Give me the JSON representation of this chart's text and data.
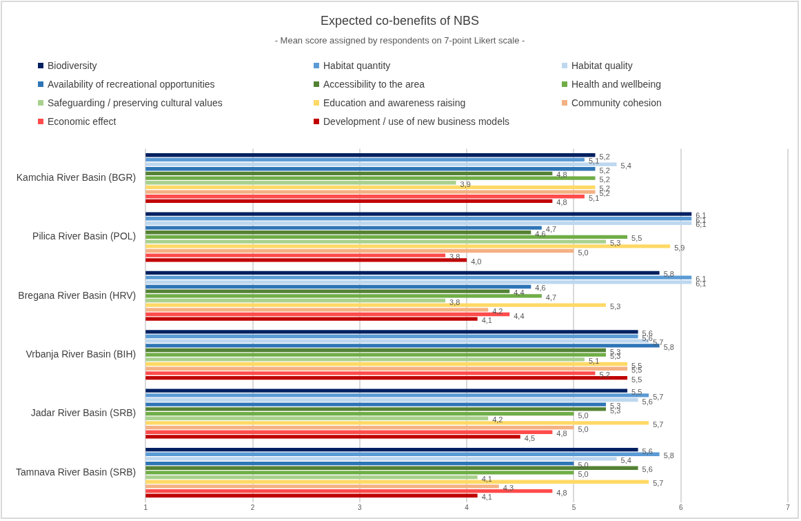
{
  "chart_data": {
    "type": "bar",
    "orientation": "horizontal",
    "title": "Expected co-benefits of NBS",
    "subtitle": "- Mean score assigned by respondents on 7-point Likert scale -",
    "categories": [
      "Kamchia River Basin (BGR)",
      "Pilica River Basin (POL)",
      "Bregana River Basin (HRV)",
      "Vrbanja River Basin (BIH)",
      "Jadar River Basin (SRB)",
      "Tamnava River Basin (SRB)"
    ],
    "xlim": [
      1,
      7
    ],
    "xticks": [
      1,
      2,
      3,
      4,
      5,
      6,
      7
    ],
    "grid": "x",
    "legend": "top",
    "series": [
      {
        "name": "Biodiversity",
        "color": "#002060",
        "values": [
          5.2,
          6.1,
          5.8,
          5.6,
          5.5,
          5.6
        ],
        "value_labels": [
          "5,2",
          "6,1",
          "5,8",
          "5,6",
          "5,5",
          "5,6"
        ]
      },
      {
        "name": "Habitat quantity",
        "color": "#5b9bd5",
        "values": [
          5.1,
          6.1,
          6.1,
          5.6,
          5.7,
          5.8
        ],
        "value_labels": [
          "5,1",
          "6,1",
          "6,1",
          "5,6",
          "5,7",
          "5,8"
        ]
      },
      {
        "name": "Habitat quality",
        "color": "#bdd7ee",
        "values": [
          5.4,
          6.1,
          6.1,
          5.7,
          5.6,
          5.4
        ],
        "value_labels": [
          "5,4",
          "6,1",
          "6,1",
          "5,7",
          "5,6",
          "5,4"
        ]
      },
      {
        "name": "Availability of recreational opportunities",
        "color": "#2e75b6",
        "values": [
          5.2,
          4.7,
          4.6,
          5.8,
          5.3,
          5.0
        ],
        "value_labels": [
          "5,2",
          "4,7",
          "4,6",
          "5,8",
          "5,3",
          "5,0"
        ]
      },
      {
        "name": "Accessibility to the area",
        "color": "#548235",
        "values": [
          4.8,
          4.6,
          4.4,
          5.3,
          5.3,
          5.6
        ],
        "value_labels": [
          "4,8",
          "4,6",
          "4,4",
          "5,3",
          "5,3",
          "5,6"
        ]
      },
      {
        "name": "Health and wellbeing",
        "color": "#70ad47",
        "values": [
          5.2,
          5.5,
          4.7,
          5.3,
          5.0,
          5.0
        ],
        "value_labels": [
          "5,2",
          "5,5",
          "4,7",
          "5,3",
          "5,0",
          "5,0"
        ]
      },
      {
        "name": "Safeguarding / preserving cultural values",
        "color": "#a9d18e",
        "values": [
          3.9,
          5.3,
          3.8,
          5.1,
          4.2,
          4.1
        ],
        "value_labels": [
          "3,9",
          "5,3",
          "3,8",
          "5,1",
          "4,2",
          "4,1"
        ]
      },
      {
        "name": "Education and awareness raising",
        "color": "#ffd966",
        "values": [
          5.2,
          5.9,
          5.3,
          5.5,
          5.7,
          5.7
        ],
        "value_labels": [
          "5,2",
          "5,9",
          "5,3",
          "5,5",
          "5,7",
          "5,7"
        ]
      },
      {
        "name": "Community cohesion",
        "color": "#f4b183",
        "values": [
          5.2,
          5.0,
          4.2,
          5.5,
          5.0,
          4.3
        ],
        "value_labels": [
          "5,2",
          "5,0",
          "4,2",
          "5,5",
          "5,0",
          "4,3"
        ]
      },
      {
        "name": "Economic effect",
        "color": "#ff4b4b",
        "values": [
          5.1,
          3.8,
          4.4,
          5.2,
          4.8,
          4.8
        ],
        "value_labels": [
          "5,1",
          "3,8",
          "4,4",
          "5,2",
          "4,8",
          "4,8"
        ]
      },
      {
        "name": "Development / use of new business models",
        "color": "#c00000",
        "values": [
          4.8,
          4.0,
          4.1,
          5.5,
          4.5,
          4.1
        ],
        "value_labels": [
          "4,8",
          "4,0",
          "4,1",
          "5,5",
          "4,5",
          "4,1"
        ]
      }
    ]
  }
}
